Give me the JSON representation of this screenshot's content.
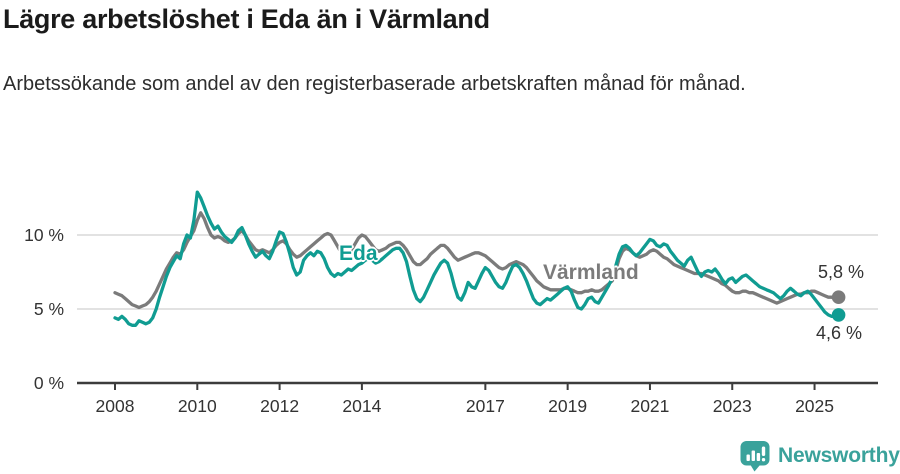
{
  "title": "Lägre arbetslöshet i Eda än i Värmland",
  "subtitle": "Arbetssökande som andel av den registerbaserade arbetskraften månad för månad.",
  "branding": {
    "name": "Newsworthy",
    "icon": "newsworthy-speech-bubble-bar-chart-icon",
    "color": "#3aa29b"
  },
  "colors": {
    "eda_line": "#109c92",
    "varmland_line": "#7b7b7b",
    "axis": "#3c3c3c",
    "grid": "#d9d9d9",
    "tick_text": "#333333"
  },
  "chart_data": {
    "type": "line",
    "title": "Lägre arbetslöshet i Eda än i Värmland",
    "subtitle": "Arbetssökande som andel av den registerbaserade arbetskraften månad för månad.",
    "x_unit": "month",
    "x_start": "2008-01",
    "x_end": "2025-08",
    "x_ticks": [
      2008,
      2010,
      2012,
      2014,
      2017,
      2019,
      2021,
      2023,
      2025
    ],
    "x_tick_labels": [
      "2008",
      "2010",
      "2012",
      "2014",
      "2017",
      "2019",
      "2021",
      "2023",
      "2025"
    ],
    "y_ticks": [
      0,
      5,
      10
    ],
    "y_tick_labels": [
      "0 %",
      "5 %",
      "10 %"
    ],
    "ylim": [
      0,
      13.5
    ],
    "grid": "horizontal",
    "legend": "inline-labels",
    "series": [
      {
        "name": "Värmland",
        "color": "#7b7b7b",
        "end_label": "5,8 %",
        "final_value": 5.8,
        "values": [
          6.1,
          6.0,
          5.9,
          5.7,
          5.5,
          5.3,
          5.2,
          5.1,
          5.2,
          5.3,
          5.5,
          5.8,
          6.2,
          6.7,
          7.2,
          7.7,
          8.1,
          8.5,
          8.8,
          8.7,
          9.0,
          9.5,
          9.9,
          10.3,
          11.0,
          11.5,
          11.1,
          10.5,
          10.0,
          9.8,
          9.9,
          9.8,
          9.6,
          9.5,
          9.6,
          9.8,
          10.1,
          10.3,
          10.0,
          9.6,
          9.3,
          9.0,
          8.9,
          9.0,
          8.9,
          8.8,
          9.0,
          9.3,
          9.5,
          9.6,
          9.4,
          9.0,
          8.7,
          8.5,
          8.6,
          8.8,
          9.0,
          9.2,
          9.4,
          9.6,
          9.8,
          10.0,
          10.1,
          10.0,
          9.6,
          9.2,
          8.8,
          8.6,
          8.7,
          9.0,
          9.4,
          9.8,
          10.0,
          9.9,
          9.6,
          9.3,
          9.0,
          8.9,
          9.0,
          9.1,
          9.3,
          9.4,
          9.5,
          9.5,
          9.3,
          9.0,
          8.6,
          8.2,
          8.0,
          8.0,
          8.2,
          8.4,
          8.7,
          8.9,
          9.1,
          9.3,
          9.3,
          9.1,
          8.8,
          8.5,
          8.3,
          8.4,
          8.5,
          8.6,
          8.7,
          8.8,
          8.8,
          8.7,
          8.6,
          8.4,
          8.2,
          8.0,
          7.8,
          7.7,
          7.8,
          8.0,
          8.1,
          8.2,
          8.1,
          8.0,
          7.8,
          7.5,
          7.2,
          6.9,
          6.7,
          6.5,
          6.4,
          6.3,
          6.3,
          6.3,
          6.3,
          6.4,
          6.4,
          6.3,
          6.2,
          6.1,
          6.1,
          6.2,
          6.2,
          6.3,
          6.2,
          6.2,
          6.3,
          6.5,
          6.7,
          6.9,
          7.6,
          8.4,
          8.9,
          9.1,
          9.0,
          8.8,
          8.6,
          8.5,
          8.6,
          8.7,
          8.9,
          9.0,
          8.9,
          8.7,
          8.5,
          8.4,
          8.2,
          8.0,
          7.9,
          7.8,
          7.7,
          7.6,
          7.5,
          7.4,
          7.4,
          7.4,
          7.3,
          7.2,
          7.1,
          7.0,
          6.9,
          6.7,
          6.6,
          6.4,
          6.2,
          6.1,
          6.1,
          6.2,
          6.2,
          6.1,
          6.1,
          6.0,
          5.9,
          5.8,
          5.7,
          5.6,
          5.5,
          5.4,
          5.5,
          5.6,
          5.7,
          5.8,
          5.9,
          6.0,
          6.0,
          6.1,
          6.1,
          6.2,
          6.2,
          6.1,
          6.0,
          5.9,
          5.8,
          5.8,
          5.7,
          5.8
        ]
      },
      {
        "name": "Eda",
        "color": "#109c92",
        "end_label": "4,6 %",
        "final_value": 4.6,
        "values": [
          4.4,
          4.3,
          4.5,
          4.3,
          4.0,
          3.9,
          3.9,
          4.2,
          4.1,
          4.0,
          4.1,
          4.4,
          5.0,
          5.8,
          6.5,
          7.2,
          7.8,
          8.2,
          8.6,
          8.4,
          9.4,
          10.0,
          9.8,
          11.0,
          12.9,
          12.5,
          11.9,
          11.3,
          10.8,
          10.4,
          10.6,
          10.2,
          9.9,
          9.7,
          9.5,
          9.8,
          10.3,
          10.5,
          10.0,
          9.4,
          8.9,
          8.5,
          8.7,
          8.9,
          8.6,
          8.4,
          8.9,
          9.6,
          10.2,
          10.1,
          9.5,
          8.7,
          7.8,
          7.3,
          7.5,
          8.3,
          8.6,
          8.8,
          8.6,
          8.9,
          8.8,
          8.4,
          7.8,
          7.4,
          7.2,
          7.4,
          7.3,
          7.5,
          7.7,
          7.6,
          7.8,
          8.0,
          8.1,
          8.3,
          8.4,
          8.3,
          8.1,
          8.2,
          8.4,
          8.6,
          8.8,
          9.0,
          9.1,
          9.1,
          8.8,
          8.2,
          7.2,
          6.3,
          5.7,
          5.5,
          5.8,
          6.3,
          6.8,
          7.3,
          7.7,
          8.1,
          8.3,
          8.1,
          7.4,
          6.5,
          5.8,
          5.6,
          6.1,
          6.8,
          6.5,
          6.4,
          6.9,
          7.4,
          7.8,
          7.6,
          7.2,
          6.8,
          6.5,
          6.4,
          6.8,
          7.4,
          7.9,
          8.0,
          7.8,
          7.4,
          6.9,
          6.3,
          5.7,
          5.4,
          5.3,
          5.5,
          5.7,
          5.6,
          5.8,
          6.0,
          6.2,
          6.4,
          6.5,
          6.2,
          5.6,
          5.1,
          5.0,
          5.3,
          5.7,
          5.8,
          5.5,
          5.4,
          5.8,
          6.2,
          6.6,
          7.1,
          7.9,
          8.7,
          9.2,
          9.3,
          9.1,
          8.8,
          8.6,
          8.8,
          9.1,
          9.4,
          9.7,
          9.6,
          9.3,
          9.2,
          9.4,
          9.3,
          8.9,
          8.6,
          8.3,
          8.1,
          7.9,
          8.3,
          8.5,
          8.0,
          7.5,
          7.2,
          7.5,
          7.6,
          7.5,
          7.7,
          7.4,
          7.0,
          6.7,
          7.0,
          7.1,
          6.8,
          7.0,
          7.2,
          7.3,
          7.1,
          6.9,
          6.7,
          6.5,
          6.4,
          6.3,
          6.2,
          6.1,
          5.9,
          5.7,
          5.9,
          6.2,
          6.4,
          6.2,
          6.0,
          5.9,
          6.1,
          6.2,
          6.0,
          5.7,
          5.4,
          5.1,
          4.8,
          4.6,
          4.5,
          4.5,
          4.6
        ]
      }
    ]
  }
}
